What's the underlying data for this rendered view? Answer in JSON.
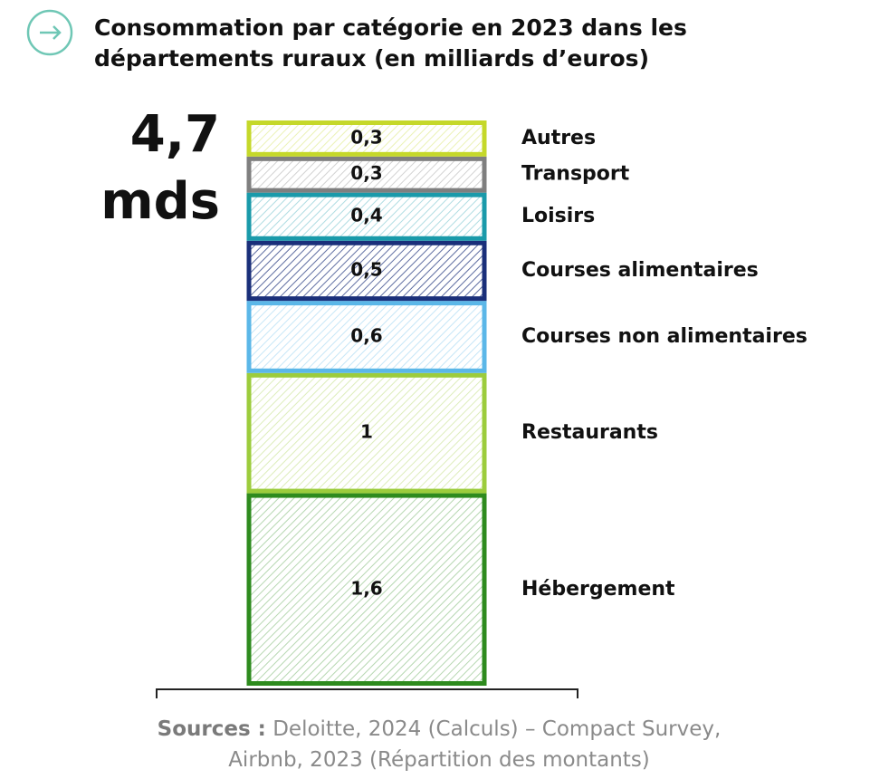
{
  "chart_data": {
    "type": "bar",
    "stacked": true,
    "title": "Consommation par catégorie en 2023 dans les départements ruraux (en milliards d’euros)",
    "total": {
      "value": 4.7,
      "label": "4,7"
    },
    "total_unit": "mds",
    "series": [
      {
        "name": "Hébergement",
        "color": "#2e8b1e",
        "values": [
          1.6
        ],
        "value_labels": [
          "1,6"
        ]
      },
      {
        "name": "Restaurants",
        "color": "#9ccc3c",
        "values": [
          1
        ],
        "value_labels": [
          "1"
        ]
      },
      {
        "name": "Courses non alimentaires",
        "color": "#5bb7e8",
        "values": [
          0.6
        ],
        "value_labels": [
          "0,6"
        ]
      },
      {
        "name": "Courses alimentaires",
        "color": "#1a2f7a",
        "values": [
          0.5
        ],
        "value_labels": [
          "0,5"
        ]
      },
      {
        "name": "Loisirs",
        "color": "#1a9aaa",
        "values": [
          0.4
        ],
        "value_labels": [
          "0,4"
        ]
      },
      {
        "name": "Transport",
        "color": "#7f7f7f",
        "values": [
          0.3
        ],
        "value_labels": [
          "0,3"
        ]
      },
      {
        "name": "Autres",
        "color": "#c5d82a",
        "values": [
          0.3
        ],
        "value_labels": [
          "0,3"
        ]
      }
    ],
    "source": {
      "label": "Sources :",
      "text": "Deloitte, 2024 (Calculs) – Compact Survey, Airbnb, 2023 (Répartition des montants)"
    }
  }
}
